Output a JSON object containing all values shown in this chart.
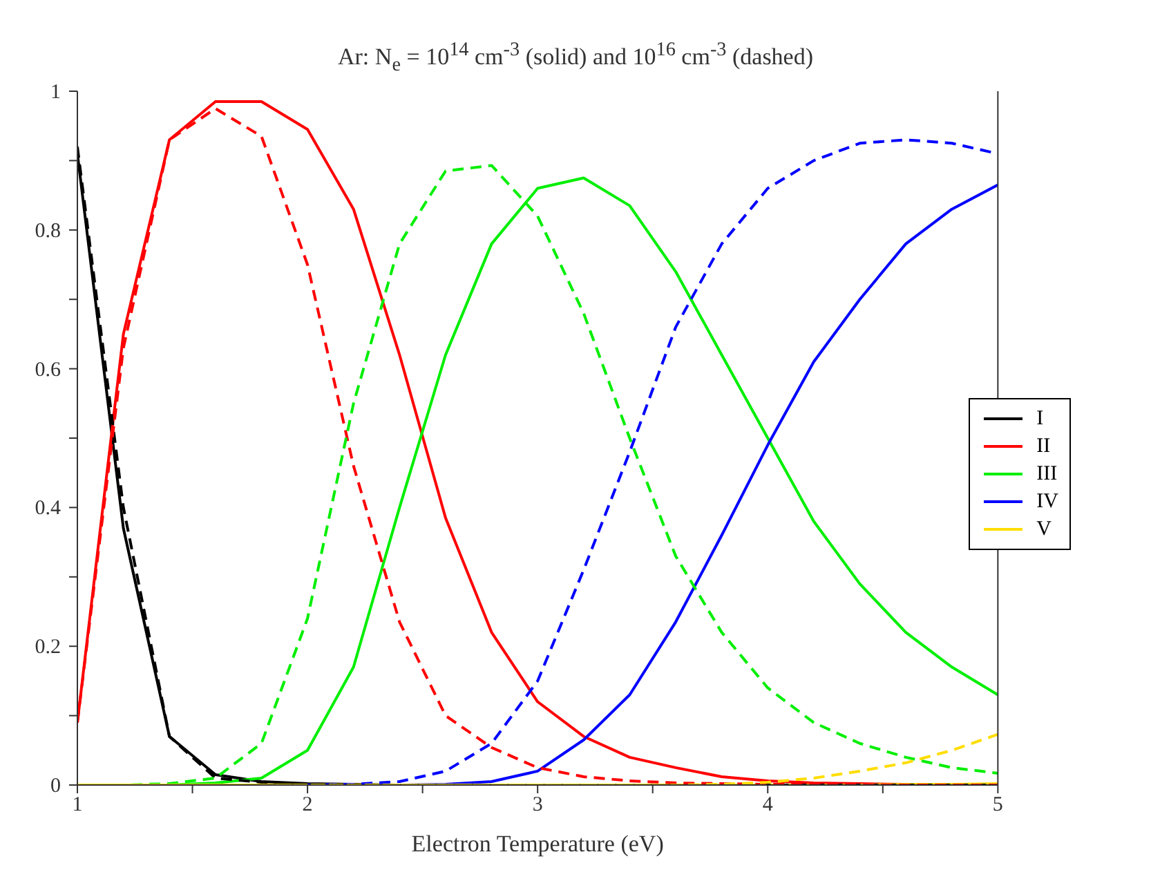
{
  "chart_data": {
    "type": "line",
    "title": "Ar: N$_{e}$ = 10$^{14}$ cm$^{-3}$ (solid) and 10$^{16}$ cm$^{-3}$ (dashed)",
    "xlabel": "Electron Temperature (eV)",
    "x": [
      1,
      1.2,
      1.4,
      1.6,
      1.8,
      2,
      2.2,
      2.4,
      2.6,
      2.8,
      3,
      3.2,
      3.4,
      3.6,
      3.8,
      4,
      4.2,
      4.4,
      4.6,
      4.8,
      5
    ],
    "xlim": [
      1,
      5
    ],
    "xticks": [
      1,
      {
        "value": 1.5,
        "label": null
      },
      2,
      {
        "value": 2.5,
        "label": null
      },
      3,
      {
        "value": 3.5,
        "label": null
      },
      4,
      {
        "value": 4.5,
        "label": null
      },
      5
    ],
    "ylim": [
      0,
      1
    ],
    "yticks": [
      0,
      {
        "value": 0.1,
        "label": null
      },
      0.2,
      {
        "value": 0.3,
        "label": null
      },
      0.4,
      {
        "value": 0.5,
        "label": null
      },
      0.6,
      {
        "value": 0.7,
        "label": null
      },
      0.8,
      {
        "value": 0.9,
        "label": null
      },
      1
    ],
    "grid": false,
    "legend": "right",
    "marker": "none",
    "series": [
      {
        "name": "I",
        "color": "#000000",
        "line_style": "solid",
        "values": [
          0.91,
          0.37,
          0.07,
          0.015,
          0.005,
          0.002,
          0.001,
          0,
          0,
          0,
          0,
          0,
          0,
          0,
          0,
          0,
          0,
          0,
          0,
          0,
          0
        ]
      },
      {
        "name": "II",
        "color": "#ff0000",
        "line_style": "solid",
        "values": [
          0.09,
          0.65,
          0.93,
          0.985,
          0.985,
          0.945,
          0.83,
          0.62,
          0.385,
          0.22,
          0.12,
          0.07,
          0.04,
          0.025,
          0.012,
          0.006,
          0.003,
          0.002,
          0.001,
          0.001,
          0
        ]
      },
      {
        "name": "III",
        "color": "#00ee00",
        "line_style": "solid",
        "values": [
          0,
          0,
          0,
          0.003,
          0.01,
          0.05,
          0.17,
          0.4,
          0.62,
          0.78,
          0.86,
          0.875,
          0.835,
          0.74,
          0.62,
          0.5,
          0.38,
          0.29,
          0.22,
          0.17,
          0.13
        ]
      },
      {
        "name": "IV",
        "color": "#0000ff",
        "line_style": "solid",
        "values": [
          null,
          null,
          null,
          null,
          null,
          0,
          0,
          0,
          0.001,
          0.005,
          0.02,
          0.065,
          0.13,
          0.235,
          0.36,
          0.49,
          0.61,
          0.7,
          0.78,
          0.83,
          0.865
        ]
      },
      {
        "name": "V",
        "color": "#ffdd00",
        "line_style": "solid",
        "values": [
          0,
          0,
          0,
          0,
          0,
          0,
          0,
          0,
          0,
          0,
          0,
          0,
          0,
          0,
          0,
          0,
          0,
          0,
          0.001,
          0.001,
          0.002
        ]
      },
      {
        "color": "#000000",
        "line_style": "dashed",
        "values": [
          0.92,
          0.4,
          0.07,
          0.01,
          0.004,
          0.001,
          0,
          0,
          0,
          0,
          0,
          0,
          0,
          0,
          0,
          0,
          0,
          0,
          0,
          0,
          0
        ]
      },
      {
        "color": "#ff0000",
        "line_style": "dashed",
        "values": [
          0.09,
          0.63,
          0.93,
          0.975,
          0.935,
          0.75,
          0.46,
          0.235,
          0.1,
          0.054,
          0.025,
          0.012,
          0.006,
          0.003,
          0.002,
          0.001,
          0.001,
          0,
          0,
          0,
          0
        ]
      },
      {
        "color": "#00ee00",
        "line_style": "dashed",
        "values": [
          0,
          0,
          0.002,
          0.01,
          0.06,
          0.24,
          0.55,
          0.78,
          0.885,
          0.893,
          0.82,
          0.68,
          0.5,
          0.33,
          0.22,
          0.14,
          0.09,
          0.06,
          0.04,
          0.025,
          0.017
        ]
      },
      {
        "color": "#0000ff",
        "line_style": "dashed",
        "values": [
          null,
          null,
          null,
          null,
          null,
          0,
          0.001,
          0.005,
          0.02,
          0.06,
          0.15,
          0.31,
          0.48,
          0.66,
          0.78,
          0.86,
          0.9,
          0.925,
          0.93,
          0.925,
          0.91
        ]
      },
      {
        "color": "#ffdd00",
        "line_style": "dashed",
        "values": [
          0,
          0,
          0,
          0,
          0,
          0,
          0,
          0,
          0,
          0,
          0,
          0,
          0,
          0,
          0.001,
          0.004,
          0.01,
          0.02,
          0.032,
          0.05,
          0.073
        ]
      }
    ]
  }
}
